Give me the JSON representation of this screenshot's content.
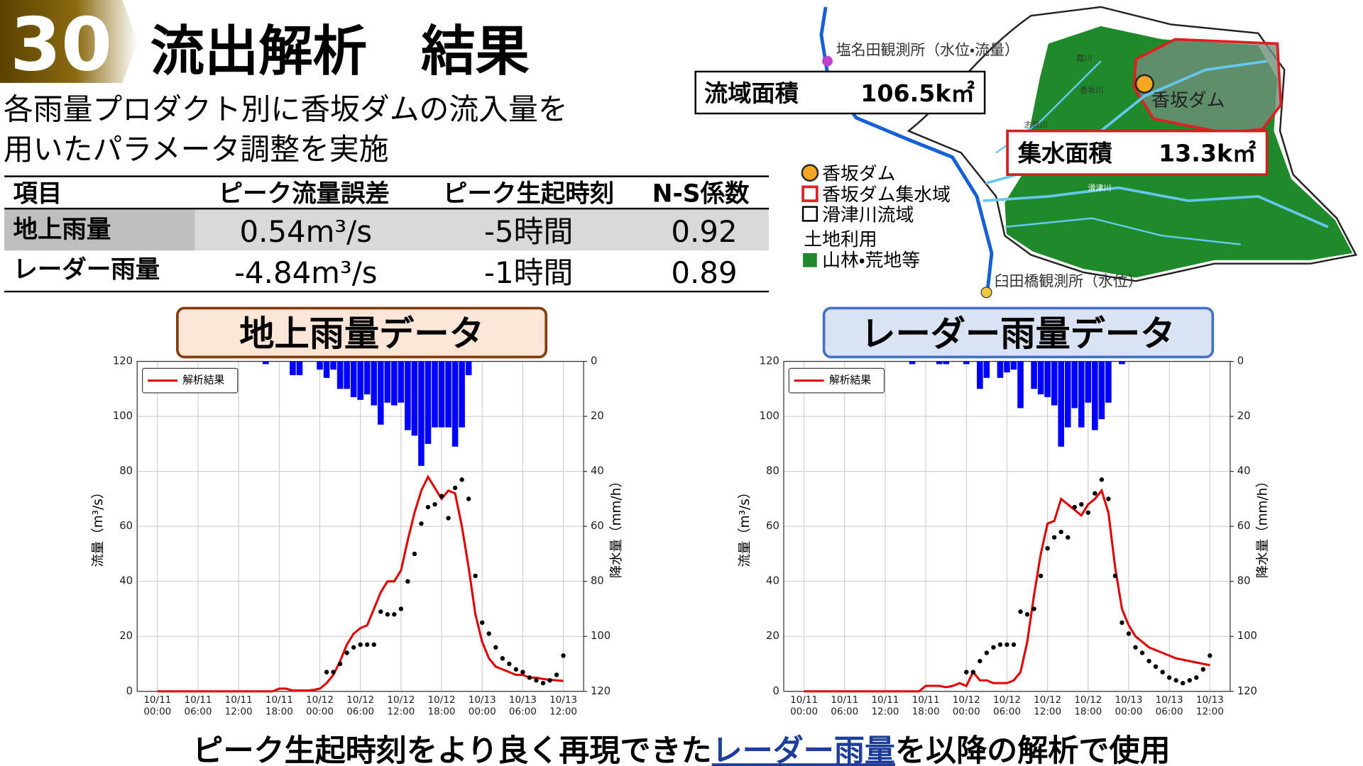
{
  "header": {
    "number": "30",
    "title": "流出解析　結果",
    "subtitle": [
      "各雨量プロダクト別に香坂ダムの流入量を",
      "用いたパラメータ調整を実施"
    ]
  },
  "table": {
    "columns": [
      "項目",
      "ピーク流量誤差",
      "ピーク生起時刻",
      "N-S係数"
    ],
    "rows": [
      [
        "地上雨量",
        "0.54m³/s",
        "-5時間",
        "0.92"
      ],
      [
        "レーダー雨量",
        "-4.84m³/s",
        "-1時間",
        "0.89"
      ]
    ]
  },
  "map": {
    "stations": [
      "塩名田観測所（水位・流量）",
      "臼田橋観測所（水位）"
    ],
    "dam": "香坂ダム",
    "rivers": [
      "霞川",
      "香坂川",
      "志賀川",
      "滑津川"
    ],
    "basin_area": {
      "label": "流域面積",
      "value": "106.5k㎡"
    },
    "catchment_area": {
      "label": "集水面積",
      "value": "13.3k㎡"
    },
    "legend": [
      "香坂ダム",
      "香坂ダム集水域",
      "滑津川流域",
      "土地利用",
      "山林・荒地等"
    ]
  },
  "chart_data": [
    {
      "type": "combo",
      "title": "地上雨量データ",
      "ylabel": "流量（m³/s）",
      "y2label": "降水量（mm/h）",
      "x": [
        0,
        1,
        2,
        3,
        4,
        5,
        6,
        7,
        8,
        9,
        10,
        11,
        12,
        13,
        14,
        15,
        16,
        17,
        18,
        19,
        20,
        21,
        22,
        23,
        24,
        25,
        26,
        27,
        28,
        29,
        30,
        31,
        32,
        33,
        34,
        35,
        36,
        37,
        38,
        39,
        40,
        41,
        42,
        43,
        44,
        45,
        46,
        47,
        48,
        49,
        50,
        51,
        52,
        53,
        54,
        55,
        56,
        57,
        58,
        59,
        60
      ],
      "xlim": [
        -3,
        63
      ],
      "xticks": [
        {
          "value": 0,
          "label": "10/11\n00:00"
        },
        {
          "value": 6,
          "label": "10/11\n06:00"
        },
        {
          "value": 12,
          "label": "10/11\n12:00"
        },
        {
          "value": 18,
          "label": "10/11\n18:00"
        },
        {
          "value": 24,
          "label": "10/12\n00:00"
        },
        {
          "value": 30,
          "label": "10/12\n06:00"
        },
        {
          "value": 36,
          "label": "10/12\n12:00"
        },
        {
          "value": 42,
          "label": "10/12\n18:00"
        },
        {
          "value": 48,
          "label": "10/13\n00:00"
        },
        {
          "value": 54,
          "label": "10/13\n06:00"
        },
        {
          "value": 60,
          "label": "10/13\n12:00"
        }
      ],
      "ylim": [
        0,
        120
      ],
      "yticks": [
        0,
        20,
        40,
        60,
        80,
        100,
        120
      ],
      "y2lim": [
        120,
        0
      ],
      "y2ticks": [
        0,
        20,
        40,
        60,
        80,
        100,
        120
      ],
      "grid": true,
      "legend": "upper left",
      "series": [
        {
          "name": "解析結果",
          "type": "line",
          "color": "#e00000",
          "values": [
            0,
            0,
            0,
            0,
            0,
            0,
            0,
            0,
            0,
            0,
            0,
            0,
            0,
            0,
            0,
            0,
            0,
            0,
            1,
            1,
            0.3,
            0.3,
            0.3,
            0.5,
            1,
            3,
            6,
            11,
            17,
            21,
            23,
            24,
            30,
            36,
            40,
            40,
            44,
            55,
            65,
            73,
            78,
            74,
            70,
            73,
            72,
            60,
            45,
            28,
            18,
            12,
            9,
            8,
            7,
            6,
            6,
            5,
            5,
            4.5,
            4.2,
            4,
            3.8
          ]
        },
        {
          "type": "scatter",
          "color": "#000000",
          "values": [
            null,
            null,
            null,
            null,
            null,
            null,
            null,
            null,
            null,
            null,
            null,
            null,
            null,
            null,
            null,
            null,
            null,
            null,
            null,
            null,
            null,
            null,
            null,
            null,
            null,
            7,
            7,
            10,
            14,
            16,
            17,
            17,
            17,
            29,
            28,
            28,
            30,
            40,
            50,
            61,
            67,
            68,
            71,
            63,
            74,
            77,
            70,
            42,
            25,
            21,
            16,
            12,
            10,
            8,
            7,
            5,
            4,
            3,
            4,
            6,
            13
          ]
        },
        {
          "type": "bar",
          "axis": "y2",
          "color": "#0000ff",
          "values": [
            0,
            0,
            0,
            0,
            0,
            0,
            0,
            0,
            0,
            0,
            0,
            0,
            0,
            0,
            0,
            0,
            1,
            0,
            0,
            0,
            5,
            5,
            0,
            0,
            3,
            6,
            3,
            10,
            10,
            13,
            14,
            12,
            16,
            23,
            15,
            16,
            15,
            25,
            27,
            38,
            30,
            24,
            24,
            24,
            31,
            24,
            5,
            0,
            0,
            0,
            0,
            0,
            0,
            0,
            0,
            0,
            0,
            0,
            0,
            0,
            0
          ]
        }
      ]
    },
    {
      "type": "combo",
      "title": "レーダー雨量データ",
      "ylabel": "流量（m³/s）",
      "y2label": "降水量（mm/h）",
      "x": [
        0,
        1,
        2,
        3,
        4,
        5,
        6,
        7,
        8,
        9,
        10,
        11,
        12,
        13,
        14,
        15,
        16,
        17,
        18,
        19,
        20,
        21,
        22,
        23,
        24,
        25,
        26,
        27,
        28,
        29,
        30,
        31,
        32,
        33,
        34,
        35,
        36,
        37,
        38,
        39,
        40,
        41,
        42,
        43,
        44,
        45,
        46,
        47,
        48,
        49,
        50,
        51,
        52,
        53,
        54,
        55,
        56,
        57,
        58,
        59,
        60
      ],
      "xlim": [
        -3,
        63
      ],
      "xticks": [
        {
          "value": 0,
          "label": "10/11\n00:00"
        },
        {
          "value": 6,
          "label": "10/11\n06:00"
        },
        {
          "value": 12,
          "label": "10/11\n12:00"
        },
        {
          "value": 18,
          "label": "10/11\n18:00"
        },
        {
          "value": 24,
          "label": "10/12\n00:00"
        },
        {
          "value": 30,
          "label": "10/12\n06:00"
        },
        {
          "value": 36,
          "label": "10/12\n12:00"
        },
        {
          "value": 42,
          "label": "10/12\n18:00"
        },
        {
          "value": 48,
          "label": "10/13\n00:00"
        },
        {
          "value": 54,
          "label": "10/13\n06:00"
        },
        {
          "value": 60,
          "label": "10/13\n12:00"
        }
      ],
      "ylim": [
        0,
        120
      ],
      "yticks": [
        0,
        20,
        40,
        60,
        80,
        100,
        120
      ],
      "y2lim": [
        120,
        0
      ],
      "y2ticks": [
        0,
        20,
        40,
        60,
        80,
        100,
        120
      ],
      "grid": true,
      "legend": "upper left",
      "series": [
        {
          "name": "解析結果",
          "type": "line",
          "color": "#e00000",
          "values": [
            0,
            0,
            0,
            0,
            0,
            0,
            0,
            0,
            0,
            0,
            0,
            0,
            0,
            0,
            0,
            0,
            0,
            0,
            2,
            2,
            2,
            1.5,
            2,
            3,
            2,
            7,
            4,
            4,
            3,
            3,
            3,
            4,
            7,
            18,
            35,
            50,
            61,
            62,
            70,
            68,
            66,
            64,
            68,
            70,
            73,
            65,
            45,
            30,
            24,
            20,
            18,
            16,
            15,
            14,
            13,
            12,
            11.5,
            11,
            10.5,
            10,
            9.5
          ]
        },
        {
          "type": "scatter",
          "color": "#000000",
          "values": [
            null,
            null,
            null,
            null,
            null,
            null,
            null,
            null,
            null,
            null,
            null,
            null,
            null,
            null,
            null,
            null,
            null,
            null,
            null,
            null,
            null,
            null,
            null,
            null,
            7,
            7,
            11,
            14,
            16,
            17,
            17,
            17,
            29,
            28,
            30,
            42,
            52,
            56,
            58,
            56,
            67,
            68,
            65,
            72,
            77,
            70,
            42,
            25,
            21,
            16,
            14,
            11,
            9,
            7,
            5,
            4,
            3,
            4,
            5,
            8,
            13
          ]
        },
        {
          "type": "bar",
          "axis": "y2",
          "color": "#0000ff",
          "values": [
            0,
            0,
            0,
            0,
            0,
            0,
            0,
            0,
            0,
            0,
            0,
            0,
            0,
            0,
            0,
            0,
            1,
            0,
            0,
            0,
            1,
            1,
            0,
            0,
            1,
            0,
            10,
            6,
            0,
            6,
            4,
            3,
            17,
            0,
            10,
            12,
            13,
            16,
            31,
            24,
            17,
            24,
            15,
            25,
            21,
            15,
            0,
            1,
            0,
            0,
            0,
            0,
            0,
            0,
            0,
            0,
            0,
            0,
            0,
            0,
            0
          ]
        }
      ]
    }
  ],
  "footer": [
    "ピーク生起時刻をより良く再現できた",
    "レーダー雨量",
    "を以降の解析で使用"
  ]
}
